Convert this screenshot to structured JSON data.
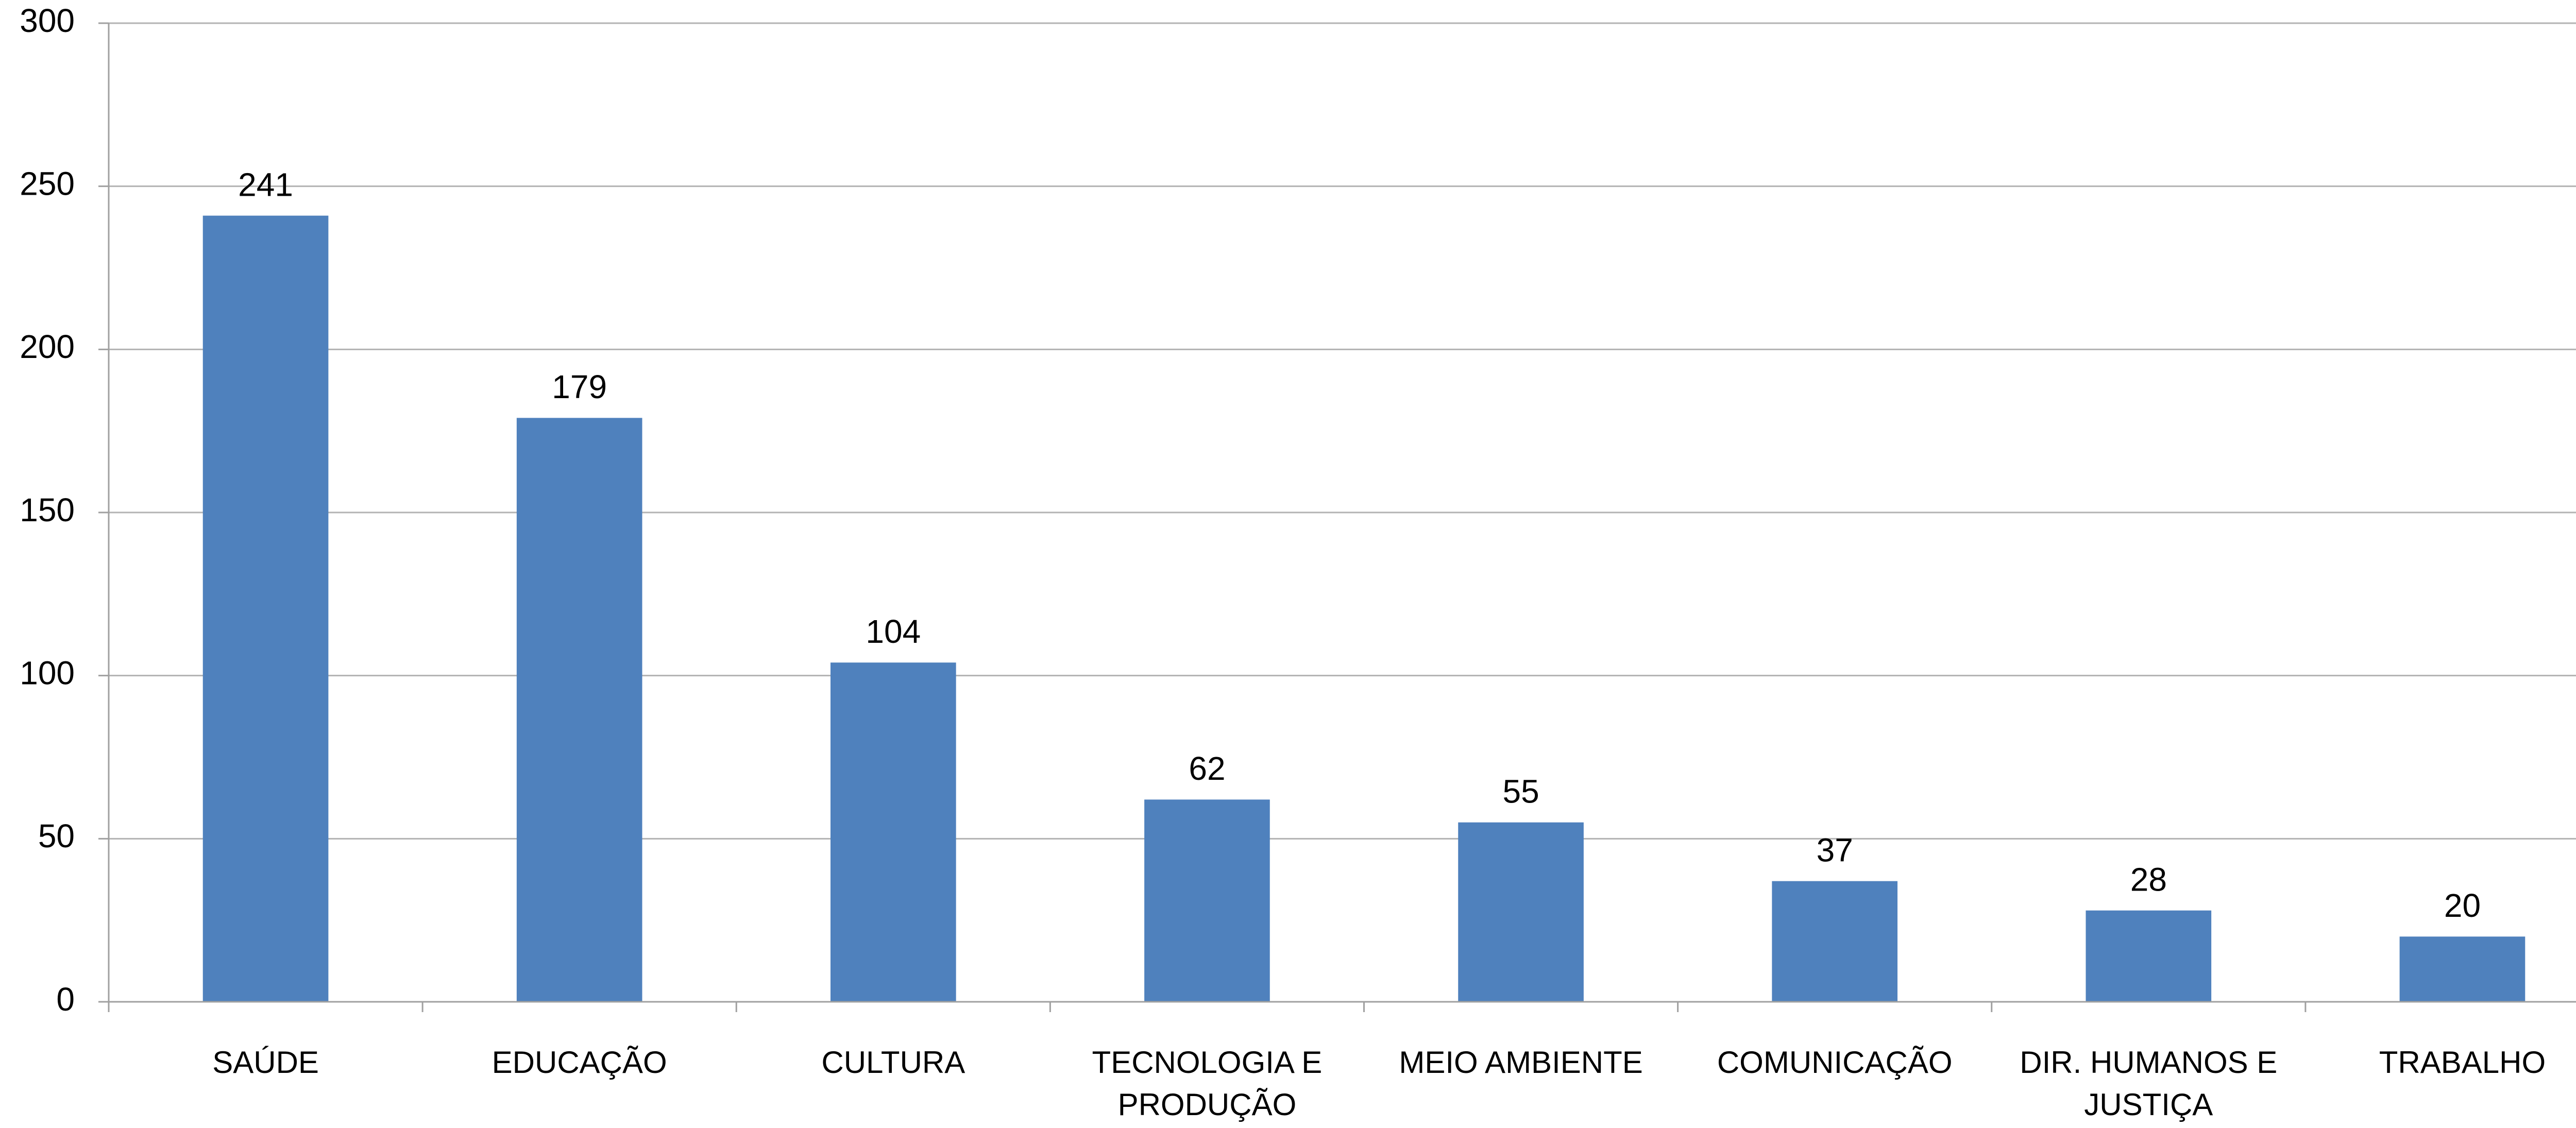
{
  "chart_data": {
    "type": "bar",
    "categories": [
      "SAÚDE",
      "EDUCAÇÃO",
      "CULTURA",
      "TECNOLOGIA E PRODUÇÃO",
      "MEIO AMBIENTE",
      "COMUNICAÇÃO",
      "DIR. HUMANOS E JUSTIÇA",
      "TRABALHO"
    ],
    "values": [
      241,
      179,
      104,
      62,
      55,
      37,
      28,
      20
    ],
    "color": "#4f81bd",
    "ylim": [
      0,
      300
    ],
    "yticks": [
      0,
      50,
      100,
      150,
      200,
      250,
      300
    ],
    "grid": true
  }
}
